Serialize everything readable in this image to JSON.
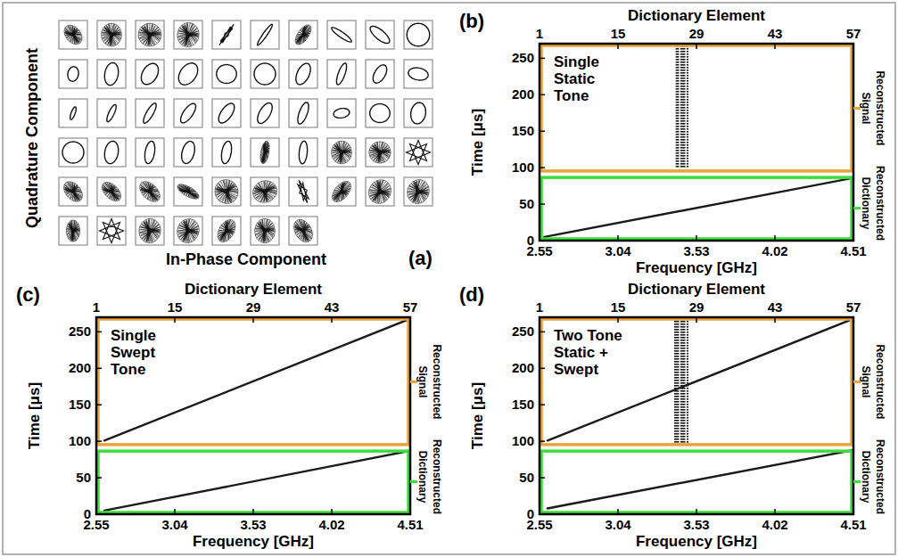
{
  "chart_data": [
    {
      "type": "iq_grid",
      "label": "(a)",
      "x_label": "In-Phase Component",
      "y_label": "Quadrature Component",
      "cells": [
        {
          "shape": "noisy",
          "rx": 0.55,
          "ry": 0.8,
          "tilt": -40
        },
        {
          "shape": "noisy",
          "rx": 0.75,
          "ry": 0.85,
          "tilt": 0
        },
        {
          "shape": "noisy",
          "rx": 0.85,
          "ry": 0.85,
          "tilt": 0
        },
        {
          "shape": "noisy",
          "rx": 0.8,
          "ry": 0.9,
          "tilt": 10
        },
        {
          "shape": "star",
          "rx": 0.15,
          "ry": 0.95,
          "tilt": 35
        },
        {
          "shape": "ellipse",
          "rx": 0.15,
          "ry": 0.95,
          "tilt": 35
        },
        {
          "shape": "noisy",
          "rx": 0.4,
          "ry": 0.85,
          "tilt": 35
        },
        {
          "shape": "ellipse",
          "rx": 0.2,
          "ry": 0.9,
          "tilt": -55
        },
        {
          "shape": "ellipse",
          "rx": 0.35,
          "ry": 0.9,
          "tilt": -50
        },
        {
          "shape": "ellipse",
          "rx": 0.85,
          "ry": 0.85,
          "tilt": 0
        },
        {
          "shape": "ellipse",
          "rx": 0.4,
          "ry": 0.55,
          "tilt": 10
        },
        {
          "shape": "ellipse",
          "rx": 0.5,
          "ry": 0.85,
          "tilt": 10
        },
        {
          "shape": "ellipse",
          "rx": 0.55,
          "ry": 0.85,
          "tilt": 30
        },
        {
          "shape": "ellipse",
          "rx": 0.6,
          "ry": 0.9,
          "tilt": 35
        },
        {
          "shape": "ellipse",
          "rx": 0.75,
          "ry": 0.7,
          "tilt": 0
        },
        {
          "shape": "ellipse",
          "rx": 0.8,
          "ry": 0.8,
          "tilt": 0
        },
        {
          "shape": "ellipse",
          "rx": 0.45,
          "ry": 0.85,
          "tilt": 25
        },
        {
          "shape": "ellipse",
          "rx": 0.25,
          "ry": 0.85,
          "tilt": 20
        },
        {
          "shape": "ellipse",
          "rx": 0.4,
          "ry": 0.75,
          "tilt": 30
        },
        {
          "shape": "ellipse",
          "rx": 0.75,
          "ry": 0.45,
          "tilt": 10
        },
        {
          "shape": "ellipse",
          "rx": 0.15,
          "ry": 0.5,
          "tilt": 20
        },
        {
          "shape": "ellipse",
          "rx": 0.2,
          "ry": 0.7,
          "tilt": 25
        },
        {
          "shape": "ellipse",
          "rx": 0.25,
          "ry": 0.85,
          "tilt": 30
        },
        {
          "shape": "ellipse",
          "rx": 0.35,
          "ry": 0.85,
          "tilt": 35
        },
        {
          "shape": "ellipse",
          "rx": 0.4,
          "ry": 0.85,
          "tilt": 35
        },
        {
          "shape": "ellipse",
          "rx": 0.4,
          "ry": 0.85,
          "tilt": 30
        },
        {
          "shape": "ellipse",
          "rx": 0.3,
          "ry": 0.85,
          "tilt": 20
        },
        {
          "shape": "ellipse",
          "rx": 0.6,
          "ry": 0.35,
          "tilt": -10
        },
        {
          "shape": "ellipse",
          "rx": 0.75,
          "ry": 0.7,
          "tilt": 0
        },
        {
          "shape": "ellipse",
          "rx": 0.55,
          "ry": 0.8,
          "tilt": 10
        },
        {
          "shape": "ellipse",
          "rx": 0.8,
          "ry": 0.8,
          "tilt": 0
        },
        {
          "shape": "ellipse",
          "rx": 0.5,
          "ry": 0.85,
          "tilt": 10
        },
        {
          "shape": "ellipse",
          "rx": 0.35,
          "ry": 0.85,
          "tilt": 10
        },
        {
          "shape": "ellipse",
          "rx": 0.45,
          "ry": 0.85,
          "tilt": 15
        },
        {
          "shape": "ellipse",
          "rx": 0.35,
          "ry": 0.85,
          "tilt": 10
        },
        {
          "shape": "noisy",
          "rx": 0.3,
          "ry": 0.85,
          "tilt": 10
        },
        {
          "shape": "ellipse",
          "rx": 0.3,
          "ry": 0.85,
          "tilt": 5
        },
        {
          "shape": "noisy",
          "rx": 0.75,
          "ry": 0.85,
          "tilt": 0
        },
        {
          "shape": "noisy",
          "rx": 0.8,
          "ry": 0.8,
          "tilt": 0
        },
        {
          "shape": "star",
          "rx": 0.9,
          "ry": 0.9,
          "tilt": 0
        },
        {
          "shape": "noisy",
          "rx": 0.55,
          "ry": 0.85,
          "tilt": -40
        },
        {
          "shape": "noisy",
          "rx": 0.5,
          "ry": 0.85,
          "tilt": -45
        },
        {
          "shape": "noisy",
          "rx": 0.55,
          "ry": 0.9,
          "tilt": -45
        },
        {
          "shape": "noisy",
          "rx": 0.35,
          "ry": 0.9,
          "tilt": -60
        },
        {
          "shape": "noisy",
          "rx": 0.85,
          "ry": 0.9,
          "tilt": -30
        },
        {
          "shape": "noisy",
          "rx": 0.9,
          "ry": 0.8,
          "tilt": -20
        },
        {
          "shape": "star",
          "rx": 0.3,
          "ry": 0.9,
          "tilt": -20
        },
        {
          "shape": "noisy",
          "rx": 0.5,
          "ry": 0.9,
          "tilt": 40
        },
        {
          "shape": "noisy",
          "rx": 0.8,
          "ry": 0.9,
          "tilt": 30
        },
        {
          "shape": "noisy",
          "rx": 0.8,
          "ry": 0.9,
          "tilt": 20
        },
        {
          "shape": "noisy",
          "rx": 0.5,
          "ry": 0.8,
          "tilt": 0
        },
        {
          "shape": "star",
          "rx": 0.9,
          "ry": 0.9,
          "tilt": 0
        },
        {
          "shape": "noisy",
          "rx": 0.8,
          "ry": 0.9,
          "tilt": 10
        },
        {
          "shape": "noisy",
          "rx": 0.8,
          "ry": 0.9,
          "tilt": 20
        },
        {
          "shape": "noisy",
          "rx": 0.55,
          "ry": 0.9,
          "tilt": 30
        },
        {
          "shape": "noisy",
          "rx": 0.75,
          "ry": 0.9,
          "tilt": 0
        },
        {
          "shape": "noisy",
          "rx": 0.6,
          "ry": 0.9,
          "tilt": -30
        }
      ]
    },
    {
      "type": "spectrogram",
      "label": "(b)",
      "x_label": "Frequency [GHz]",
      "x2_label": "Dictionary Element",
      "y_label": "Time [μs]",
      "xlim": [
        2.55,
        4.51
      ],
      "xticks": [
        2.55,
        3.04,
        3.53,
        4.02,
        4.51
      ],
      "x2lim": [
        1,
        57
      ],
      "x2ticks": [
        1,
        15,
        29,
        43,
        57
      ],
      "ylim": [
        0,
        270
      ],
      "yticks": [
        0,
        50,
        100,
        150,
        200,
        250
      ],
      "annotation": [
        "Single",
        "Static",
        "Tone"
      ],
      "regions": [
        {
          "label": "Reconstructed Signal",
          "range": [
            93,
            270
          ],
          "color": "#e8a33d"
        },
        {
          "label": "Reconstructed Dictionary",
          "range": [
            0,
            89
          ],
          "color": "#3ddc3d"
        }
      ],
      "series": [
        {
          "type": "line",
          "color": "#1a1a1a",
          "x": [
            2.58,
            4.51
          ],
          "values": [
            5,
            86
          ]
        },
        {
          "type": "band",
          "color": "#1a1a1a",
          "x": [
            3.4,
            3.48
          ],
          "values": [
            100,
            268
          ]
        }
      ]
    },
    {
      "type": "spectrogram",
      "label": "(c)",
      "x_label": "Frequency [GHz]",
      "x2_label": "Dictionary Element",
      "y_label": "Time [μs]",
      "xlim": [
        2.55,
        4.51
      ],
      "xticks": [
        2.55,
        3.04,
        3.53,
        4.02,
        4.51
      ],
      "x2lim": [
        1,
        57
      ],
      "x2ticks": [
        1,
        15,
        29,
        43,
        57
      ],
      "ylim": [
        0,
        270
      ],
      "yticks": [
        0,
        50,
        100,
        150,
        200,
        250
      ],
      "annotation": [
        "Single",
        "Swept",
        "Tone"
      ],
      "regions": [
        {
          "label": "Reconstructed Signal",
          "range": [
            93,
            270
          ],
          "color": "#e8a33d"
        },
        {
          "label": "Reconstructed Dictionary",
          "range": [
            0,
            89
          ],
          "color": "#3ddc3d"
        }
      ],
      "series": [
        {
          "type": "line",
          "color": "#1a1a1a",
          "x": [
            2.6,
            4.51
          ],
          "values": [
            5,
            87
          ]
        },
        {
          "type": "line",
          "color": "#1a1a1a",
          "x": [
            2.6,
            4.51
          ],
          "values": [
            101,
            268
          ]
        }
      ]
    },
    {
      "type": "spectrogram",
      "label": "(d)",
      "x_label": "Frequency [GHz]",
      "x2_label": "Dictionary Element",
      "y_label": "Time [μs]",
      "xlim": [
        2.55,
        4.51
      ],
      "xticks": [
        2.55,
        3.04,
        3.53,
        4.02,
        4.51
      ],
      "x2lim": [
        1,
        57
      ],
      "x2ticks": [
        1,
        15,
        29,
        43,
        57
      ],
      "ylim": [
        0,
        270
      ],
      "yticks": [
        0,
        50,
        100,
        150,
        200,
        250
      ],
      "annotation": [
        "Two Tone",
        "Static +",
        "Swept"
      ],
      "regions": [
        {
          "label": "Reconstructed Signal",
          "range": [
            93,
            270
          ],
          "color": "#e8a33d"
        },
        {
          "label": "Reconstructed Dictionary",
          "range": [
            0,
            89
          ],
          "color": "#3ddc3d"
        }
      ],
      "series": [
        {
          "type": "line",
          "color": "#1a1a1a",
          "x": [
            2.6,
            4.51
          ],
          "values": [
            8,
            88
          ]
        },
        {
          "type": "band",
          "color": "#1a1a1a",
          "x": [
            3.39,
            3.48
          ],
          "values": [
            97,
            268
          ]
        },
        {
          "type": "line",
          "color": "#1a1a1a",
          "x": [
            2.6,
            4.51
          ],
          "values": [
            101,
            268
          ]
        }
      ]
    }
  ]
}
